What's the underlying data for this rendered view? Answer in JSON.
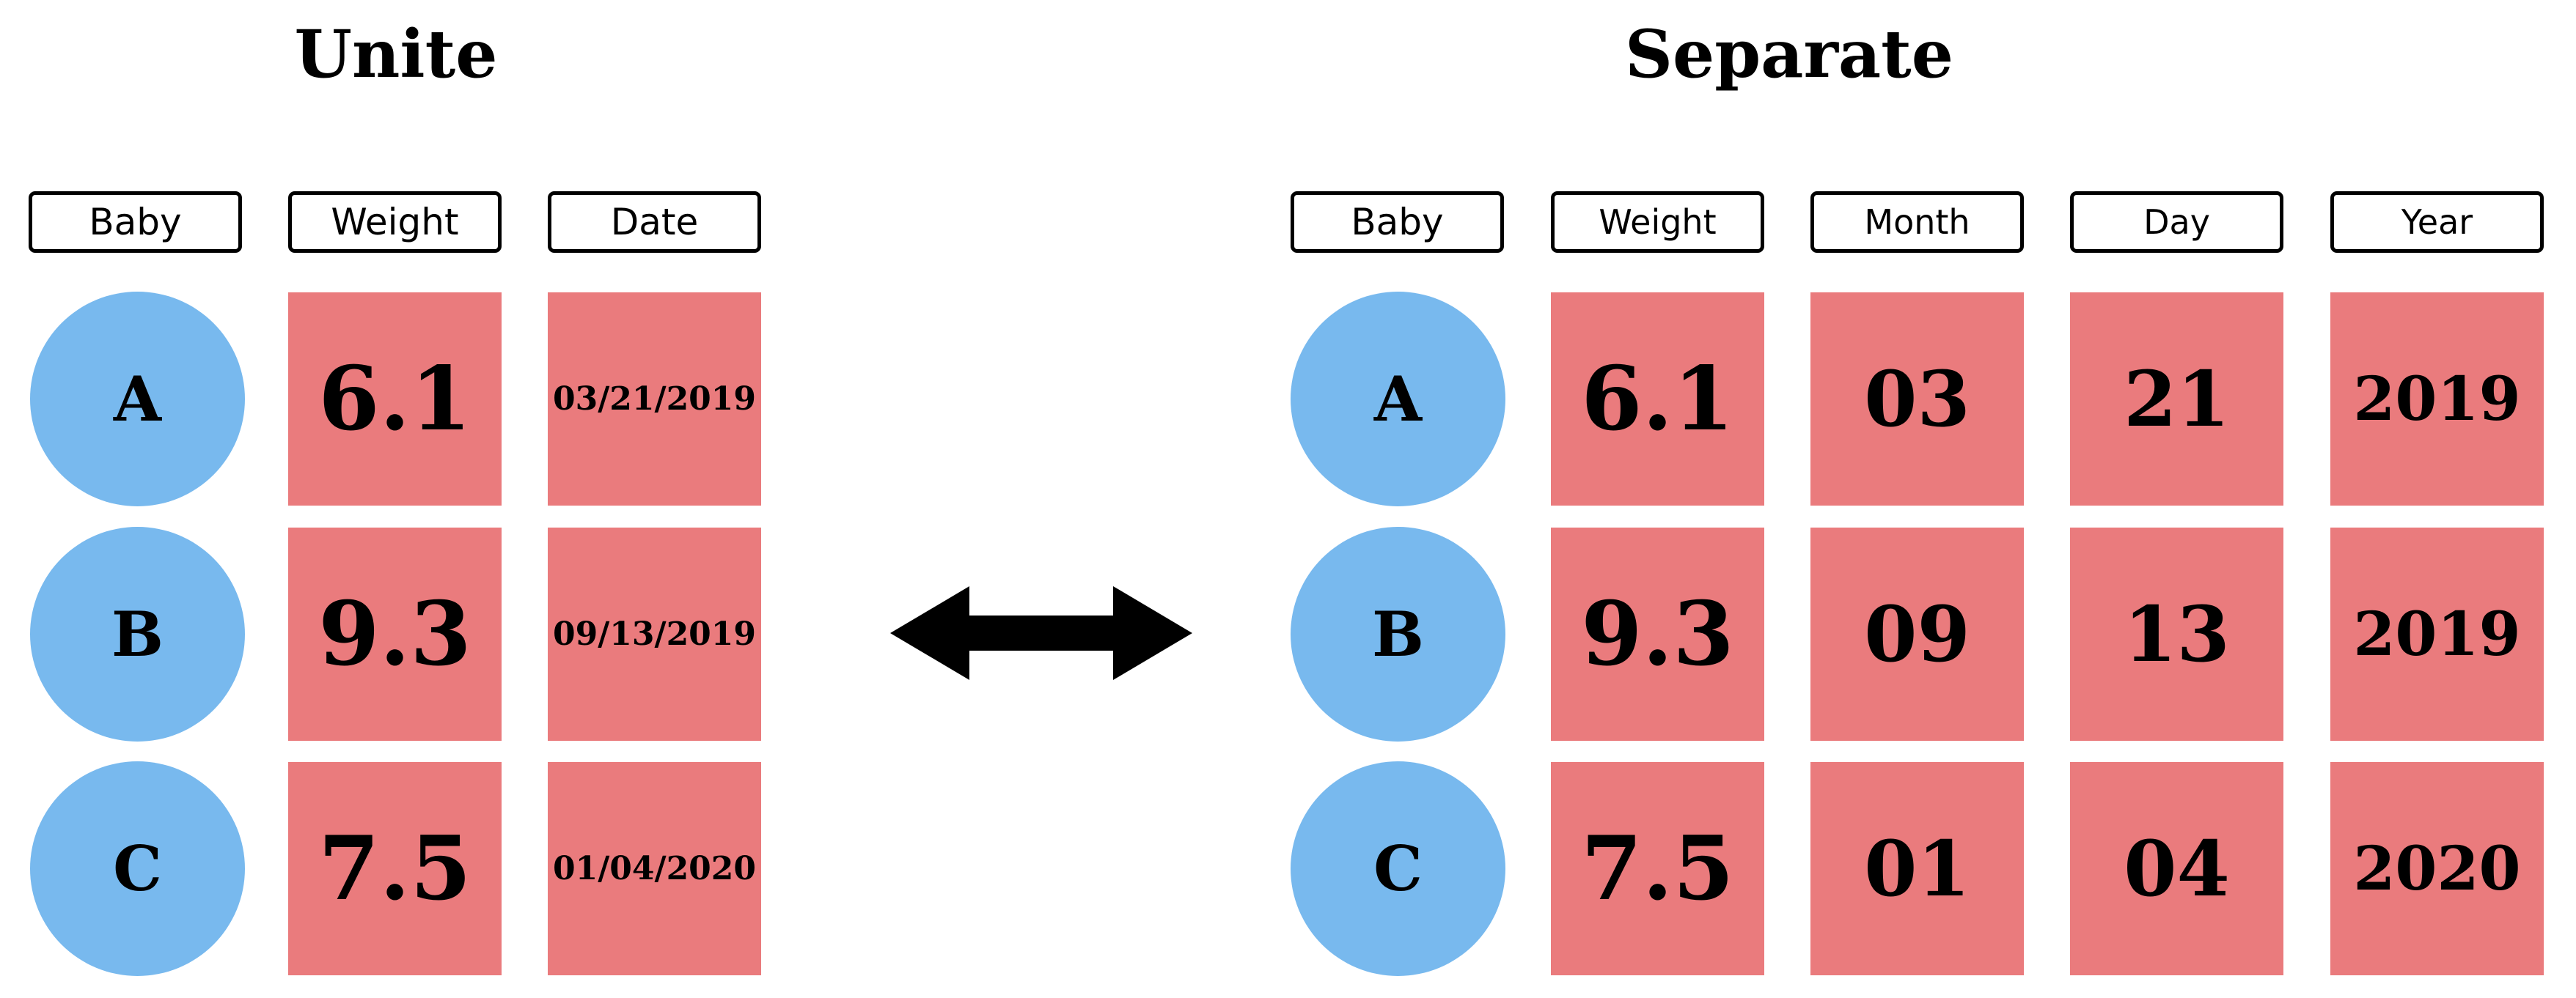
{
  "unite": {
    "title": "Unite",
    "headers": {
      "baby": "Baby",
      "weight": "Weight",
      "date": "Date"
    },
    "rows": [
      {
        "baby": "A",
        "weight": "6.1",
        "date": "03/21/2019"
      },
      {
        "baby": "B",
        "weight": "9.3",
        "date": "09/13/2019"
      },
      {
        "baby": "C",
        "weight": "7.5",
        "date": "01/04/2020"
      }
    ]
  },
  "separate": {
    "title": "Separate",
    "headers": {
      "baby": "Baby",
      "weight": "Weight",
      "month": "Month",
      "day": "Day",
      "year": "Year"
    },
    "rows": [
      {
        "baby": "A",
        "weight": "6.1",
        "month": "03",
        "day": "21",
        "year": "2019"
      },
      {
        "baby": "B",
        "weight": "9.3",
        "month": "09",
        "day": "13",
        "year": "2019"
      },
      {
        "baby": "C",
        "weight": "7.5",
        "month": "01",
        "day": "04",
        "year": "2020"
      }
    ]
  },
  "colors": {
    "baby_circle": "#78b9ee",
    "value_cell": "#ea7b7d",
    "arrow": "#000000"
  },
  "icons": {
    "arrow": "double-headed-arrow-icon"
  }
}
